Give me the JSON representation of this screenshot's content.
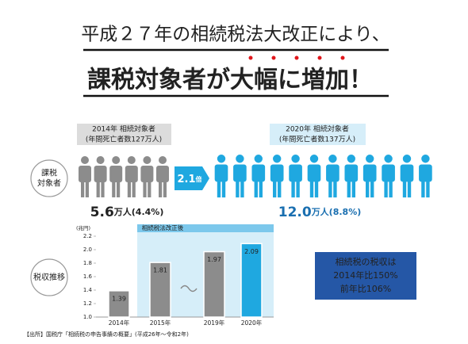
{
  "header": {
    "line1": "平成２７年の相続税法大改正により、",
    "line2": "課税対象者が大幅に増加！"
  },
  "comparison": {
    "row_label": "課税\n対象者",
    "before": {
      "label": "2014年 相続対象者",
      "sub": "(年間死亡者数127万人)",
      "amount": "5.6",
      "unit": "万人(4.4%)"
    },
    "ratio": "2.1",
    "ratio_unit": "倍",
    "after": {
      "label": "2020年 相続対象者",
      "sub": "(年間死亡者数137万人)",
      "amount": "12.0",
      "unit": "万人(8.8%)"
    }
  },
  "chart_data": {
    "type": "bar",
    "row_label": "税収推移",
    "y_label": "(兆円)",
    "annotation": "相続税法改正後",
    "categories": [
      "2014年",
      "2015年",
      "2019年",
      "2020年"
    ],
    "values": [
      1.39,
      1.81,
      1.97,
      2.09
    ],
    "colors": [
      "#8c8c8c",
      "#8c8c8c",
      "#8c8c8c",
      "#1fa8e0"
    ],
    "ylim": [
      1.0,
      2.2
    ],
    "yticks": [
      {
        "value": 1.0,
        "label": "1.0"
      },
      1.2,
      1.4,
      1.6,
      1.8,
      {
        "value": 2.0,
        "label": "2.0"
      },
      2.2
    ],
    "grid": false
  },
  "callout": [
    "相続税の税収は",
    "2014年比150%",
    "前年比106%"
  ],
  "source": "【出所】国税庁「相続税の申告事績の概要」(平成26年～令和2年)"
}
